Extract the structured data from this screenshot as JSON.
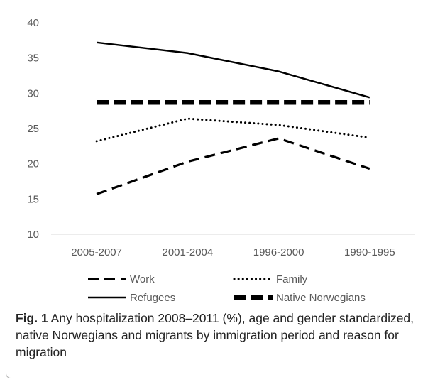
{
  "chart_data": {
    "type": "line",
    "categories": [
      "2005-2007",
      "2001-2004",
      "1996-2000",
      "1990-1995"
    ],
    "ylim": [
      10,
      40
    ],
    "yticks": [
      10,
      15,
      20,
      25,
      30,
      35,
      40
    ],
    "grid": false,
    "legend_position": "bottom",
    "series": [
      {
        "name": "Work",
        "values": [
          15.7,
          20.3,
          23.6,
          19.3
        ],
        "style": "dashed",
        "color": "#000000"
      },
      {
        "name": "Family",
        "values": [
          23.2,
          26.4,
          25.5,
          23.7
        ],
        "style": "dotted",
        "color": "#000000"
      },
      {
        "name": "Refugees",
        "values": [
          37.2,
          35.7,
          33.1,
          29.4
        ],
        "style": "solid",
        "color": "#000000"
      },
      {
        "name": "Native Norwegians",
        "values": [
          28.7,
          28.7,
          28.7,
          28.7
        ],
        "style": "thick-dashed",
        "color": "#000000"
      }
    ]
  },
  "caption": {
    "label": "Fig. 1",
    "text": "Any hospitalization 2008–2011 (%), age and gender standardized, native Norwegians and migrants by immigration period and reason for migration"
  }
}
